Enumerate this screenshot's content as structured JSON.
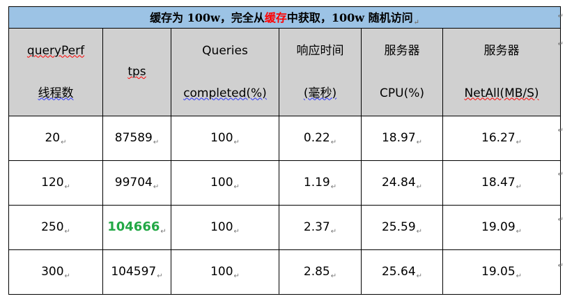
{
  "title": {
    "part1": "缓存为 100w，完全从",
    "highlight": "缓存",
    "part2": "中获取，100w 随机访问",
    "mark": "↵"
  },
  "headers": [
    {
      "line1": "queryPerf",
      "line2": "线程数"
    },
    {
      "line1": "tps",
      "line2": ""
    },
    {
      "line1": "Queries",
      "line2": "completed(%)"
    },
    {
      "line1": "响应时间",
      "line2": "(毫秒)"
    },
    {
      "line1": "服务器",
      "line2": "CPU(%)"
    },
    {
      "line1": "服务器",
      "line2": "NetAll(MB/S)"
    }
  ],
  "rows": [
    {
      "threads": "20",
      "tps": "87589",
      "completed": "100",
      "latency": "0.22",
      "cpu": "18.97",
      "net": "16.27"
    },
    {
      "threads": "120",
      "tps": "99704",
      "completed": "100",
      "latency": "1.19",
      "cpu": "24.84",
      "net": "18.47"
    },
    {
      "threads": "250",
      "tps": "104666",
      "completed": "100",
      "latency": "2.37",
      "cpu": "25.59",
      "net": "19.09"
    },
    {
      "threads": "300",
      "tps": "104597",
      "completed": "100",
      "latency": "2.85",
      "cpu": "25.64",
      "net": "19.05"
    }
  ],
  "mark": "↵",
  "colors": {
    "title_bg": "#9cc3e5",
    "header_bg": "#d0d0d0",
    "highlight_red": "#ff0000",
    "highlight_green": "#22a845"
  }
}
